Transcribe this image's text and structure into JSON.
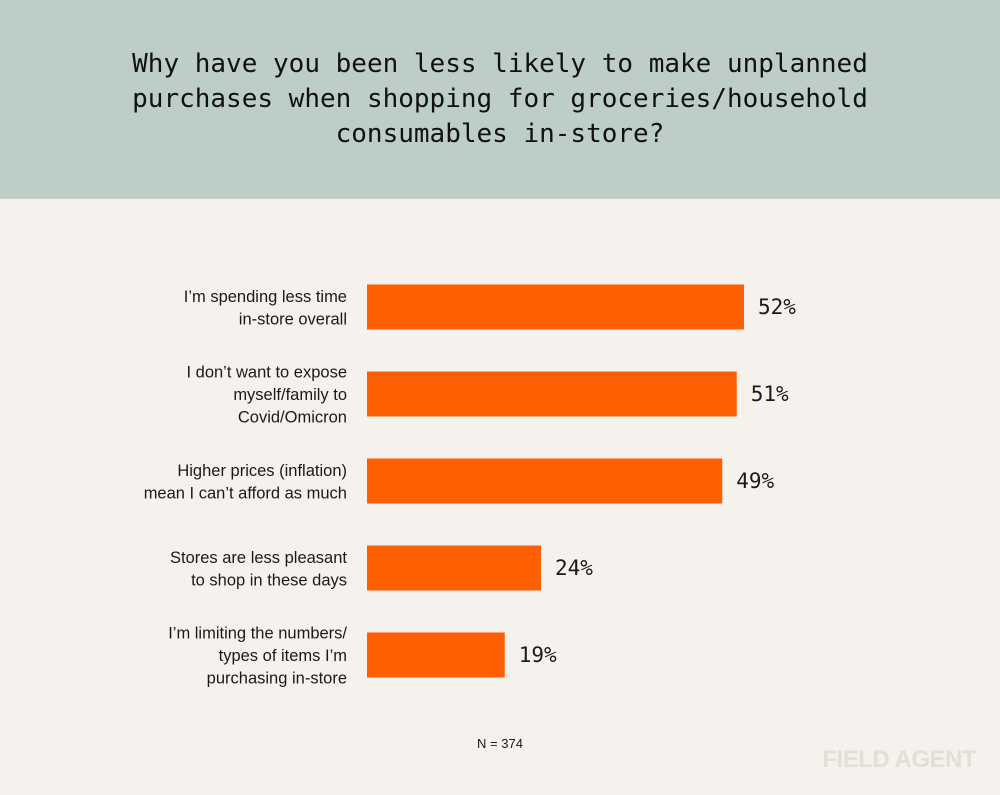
{
  "header": {
    "title": "Why have you been less likely to make unplanned purchases when shopping for groceries/household consumables in-store?"
  },
  "colors": {
    "header_bg": "#bccec5",
    "page_bg": "#f5f2ed",
    "bar": "#ff5f00"
  },
  "chart_data": {
    "type": "bar",
    "orientation": "horizontal",
    "categories": [
      [
        "I’m spending less time",
        "in-store overall"
      ],
      [
        "I don’t want to expose",
        "myself/family to",
        "Covid/Omicron"
      ],
      [
        "Higher prices (inflation)",
        "mean I can’t afford as much"
      ],
      [
        "Stores are less pleasant",
        "to shop in these days"
      ],
      [
        "I’m limiting the numbers/",
        "types of items I’m",
        "purchasing in-store"
      ]
    ],
    "values": [
      52,
      51,
      49,
      24,
      19
    ],
    "value_labels": [
      "52%",
      "51%",
      "49%",
      "24%",
      "19%"
    ],
    "unit": "%",
    "grid": false,
    "axes_visible": false
  },
  "footer": {
    "sample_size": "N = 374",
    "logo": "FIELD AGENT"
  }
}
